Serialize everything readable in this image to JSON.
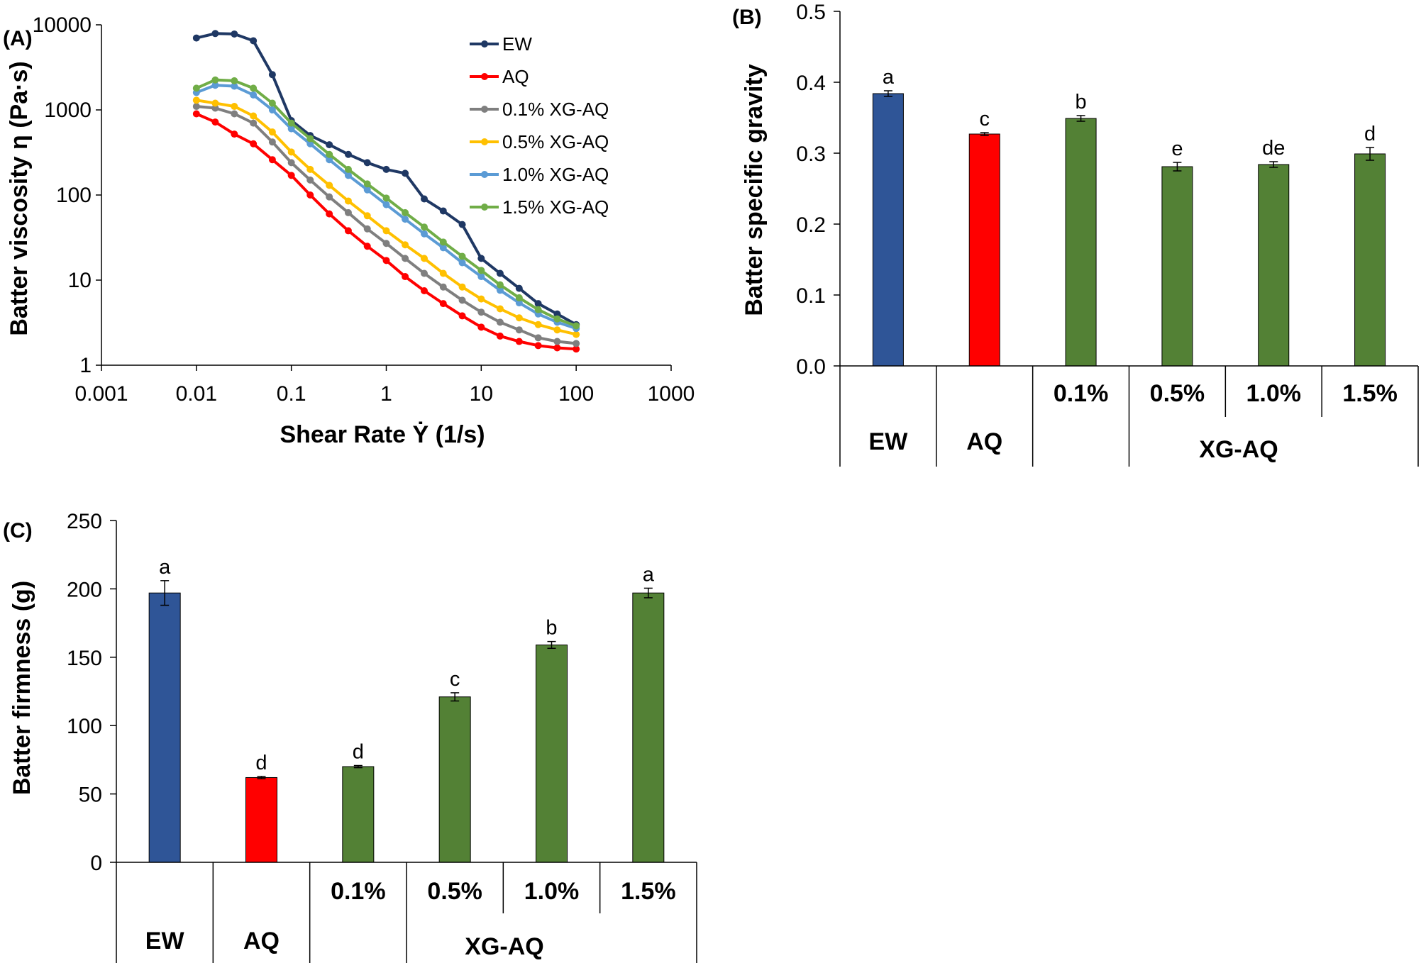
{
  "chart_data": [
    {
      "panel": "(A)",
      "type": "line",
      "scale": "log-log",
      "xlabel": "Shear Rate Ẏ (1/s)",
      "ylabel": "Batter viscosity η (Pa·s)",
      "xlim": [
        0.001,
        1000
      ],
      "ylim": [
        1,
        10000
      ],
      "xticks": [
        "0.001",
        "0.01",
        "0.1",
        "1",
        "10",
        "100",
        "1000"
      ],
      "yticks": [
        "1",
        "10",
        "100",
        "1000",
        "10000"
      ],
      "legend_position": "top-right",
      "x": [
        0.01,
        0.0158,
        0.0251,
        0.0398,
        0.0631,
        0.1,
        0.158,
        0.251,
        0.398,
        0.631,
        1,
        1.58,
        2.51,
        3.98,
        6.31,
        10,
        15.8,
        25.1,
        39.8,
        63.1,
        100
      ],
      "series": [
        {
          "name": "EW",
          "color": "#1f3864",
          "values": [
            7000,
            7900,
            7800,
            6500,
            2600,
            750,
            500,
            390,
            300,
            240,
            200,
            180,
            90,
            65,
            45,
            18,
            12,
            8,
            5.3,
            4,
            3
          ]
        },
        {
          "name": "AQ",
          "color": "#ff0000",
          "values": [
            900,
            720,
            520,
            400,
            260,
            170,
            100,
            60,
            38,
            25,
            17,
            11,
            7.5,
            5.3,
            3.8,
            2.8,
            2.2,
            1.9,
            1.7,
            1.6,
            1.55
          ]
        },
        {
          "name": "0.1% XG-AQ",
          "color": "#7f7f7f",
          "values": [
            1100,
            1050,
            900,
            700,
            420,
            240,
            150,
            95,
            62,
            40,
            27,
            18,
            12,
            8.3,
            5.8,
            4.2,
            3.2,
            2.6,
            2.1,
            1.9,
            1.8
          ]
        },
        {
          "name": "0.5% XG-AQ",
          "color": "#ffc000",
          "values": [
            1300,
            1200,
            1100,
            850,
            550,
            320,
            200,
            130,
            85,
            57,
            38,
            26,
            18,
            12,
            8.3,
            6,
            4.6,
            3.6,
            3,
            2.6,
            2.3
          ]
        },
        {
          "name": "1.0% XG-AQ",
          "color": "#5b9bd5",
          "values": [
            1600,
            1950,
            1900,
            1500,
            1000,
            600,
            400,
            260,
            170,
            115,
            77,
            52,
            35,
            24,
            16,
            11,
            7.6,
            5.4,
            4,
            3.2,
            2.7
          ]
        },
        {
          "name": "1.5% XG-AQ",
          "color": "#70ad47",
          "values": [
            1800,
            2250,
            2200,
            1800,
            1200,
            700,
            460,
            300,
            200,
            135,
            92,
            62,
            42,
            28,
            19,
            13,
            8.8,
            6.2,
            4.5,
            3.5,
            2.9
          ]
        }
      ]
    },
    {
      "panel": "(B)",
      "type": "bar",
      "ylabel": "Batter specific gravity",
      "ylim": [
        0,
        0.5
      ],
      "yticks": [
        "0.0",
        "0.1",
        "0.2",
        "0.3",
        "0.4",
        "0.5"
      ],
      "categories": [
        "EW",
        "AQ",
        "0.1%",
        "0.5%",
        "1.0%",
        "1.5%"
      ],
      "group_label": "XG-AQ",
      "values": [
        0.384,
        0.327,
        0.349,
        0.281,
        0.284,
        0.299
      ],
      "errors": [
        0.004,
        0.002,
        0.004,
        0.006,
        0.004,
        0.009
      ],
      "significance": [
        "a",
        "c",
        "b",
        "e",
        "de",
        "d"
      ],
      "colors": [
        "#2f5597",
        "#ff0000",
        "#538135",
        "#538135",
        "#538135",
        "#538135"
      ]
    },
    {
      "panel": "(C)",
      "type": "bar",
      "ylabel": "Batter firmness (g)",
      "ylim": [
        0,
        250
      ],
      "yticks": [
        "0",
        "50",
        "100",
        "150",
        "200",
        "250"
      ],
      "categories": [
        "EW",
        "AQ",
        "0.1%",
        "0.5%",
        "1.0%",
        "1.5%"
      ],
      "group_label": "XG-AQ",
      "values": [
        197,
        62,
        70,
        121,
        159,
        197
      ],
      "errors": [
        9,
        0.8,
        0.8,
        3,
        2.5,
        3.5
      ],
      "significance": [
        "a",
        "d",
        "d",
        "c",
        "b",
        "a"
      ],
      "colors": [
        "#2f5597",
        "#ff0000",
        "#538135",
        "#538135",
        "#538135",
        "#538135"
      ]
    }
  ]
}
